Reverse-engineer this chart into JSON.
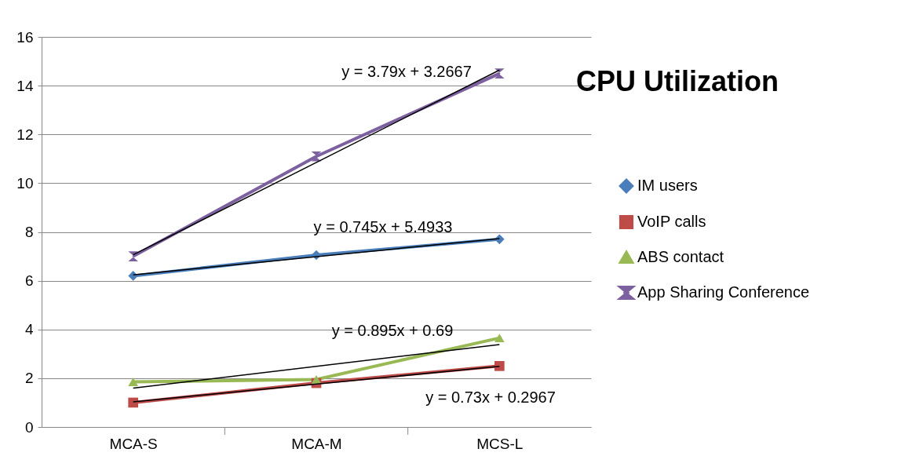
{
  "chart_data": {
    "type": "line",
    "title": "CPU Utilization",
    "categories": [
      "MCA-S",
      "MCA-M",
      "MCS-L"
    ],
    "series": [
      {
        "name": "IM  users",
        "color": "#4a7ebb",
        "marker": "diamond",
        "values": [
          6.2,
          7.05,
          7.7
        ]
      },
      {
        "name": "VoIP calls",
        "color": "#be4b48",
        "marker": "square",
        "values": [
          1.0,
          1.8,
          2.5
        ]
      },
      {
        "name": "ABS  contact",
        "color": "#98b954",
        "marker": "triangle",
        "values": [
          1.85,
          1.95,
          3.65
        ]
      },
      {
        "name": "App Sharing Conference",
        "color": "#7d60a0",
        "marker": "cross",
        "values": [
          7.0,
          11.1,
          14.5
        ]
      },
      {
        "type": "line",
        "color": "#000000",
        "x": [
          "MCA-S",
          "MCS-L"
        ],
        "values": [
          6.24,
          7.73
        ]
      },
      {
        "type": "line",
        "color": "#000000",
        "x": [
          "MCA-S",
          "MCS-L"
        ],
        "values": [
          1.03,
          2.49
        ]
      },
      {
        "type": "line",
        "color": "#000000",
        "x": [
          "MCA-S",
          "MCS-L"
        ],
        "values": [
          1.59,
          3.38
        ]
      },
      {
        "type": "line",
        "color": "#000000",
        "x": [
          "MCA-S",
          "MCS-L"
        ],
        "values": [
          7.06,
          14.64
        ]
      }
    ],
    "annotations": [
      "y = 3.79x + 3.2667",
      "y = 0.745x + 5.4933",
      "y = 0.895x + 0.69",
      "y = 0.73x + 0.2967"
    ],
    "ylim": [
      0,
      16
    ],
    "yticks": [
      0,
      2,
      4,
      6,
      8,
      10,
      12,
      14,
      16
    ],
    "grid": "y",
    "legend": "right"
  }
}
